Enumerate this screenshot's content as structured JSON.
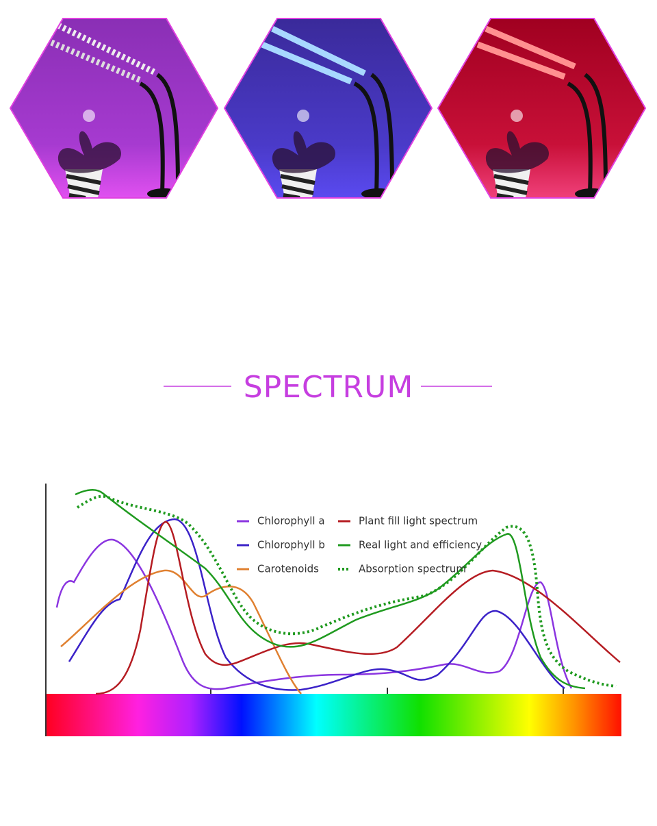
{
  "title": "SPECTRUM",
  "legend": [
    {
      "label": "Chlorophyll a",
      "color": "#8b35e0"
    },
    {
      "label": "Chlorophyll b",
      "color": "#3b22c8"
    },
    {
      "label": "Carotenoids",
      "color": "#e08030"
    },
    {
      "label": "Plant fill light spectrum",
      "color": "#b51c22"
    },
    {
      "label": "Real light and efficiency",
      "color": "#1f9a1f"
    },
    {
      "label": "Absorption spectrum",
      "color": "#1f9a1f"
    }
  ]
}
